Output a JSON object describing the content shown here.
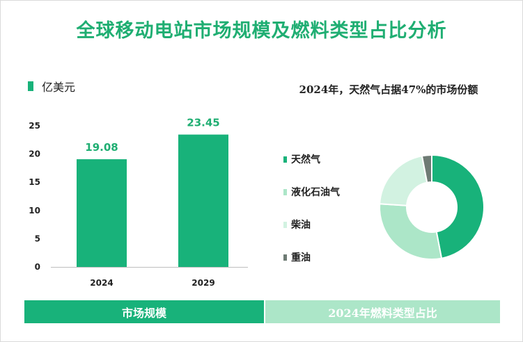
{
  "title": "全球移动电站市场规模及燃料类型占比分析",
  "bar_legend_label": "亿美元",
  "pie_title": "2024年，天然气占据47%的市场份额",
  "footer": {
    "left_label": "市场规模",
    "right_label": "2024年燃料类型占比"
  },
  "colors": {
    "accent": "#18b27a",
    "pie": [
      "#18b27a",
      "#ace6c8",
      "#d2f2e1",
      "#6e7b74"
    ]
  },
  "chart_data": [
    {
      "type": "bar",
      "categories": [
        "2024",
        "2029"
      ],
      "values": [
        19.08,
        23.45
      ],
      "value_labels": [
        "19.08",
        "23.45"
      ],
      "ylim": [
        0,
        25
      ],
      "yticks": [
        0,
        5,
        10,
        15,
        20,
        25
      ],
      "ytick_labels": [
        "0",
        "5",
        "10",
        "15",
        "20",
        "25"
      ],
      "legend": "top-left",
      "grid": false
    },
    {
      "type": "pie",
      "categories": [
        "天然气",
        "液化石油气",
        "柴油",
        "重油"
      ],
      "values": [
        47,
        29,
        21,
        3
      ],
      "legend": "left"
    }
  ]
}
